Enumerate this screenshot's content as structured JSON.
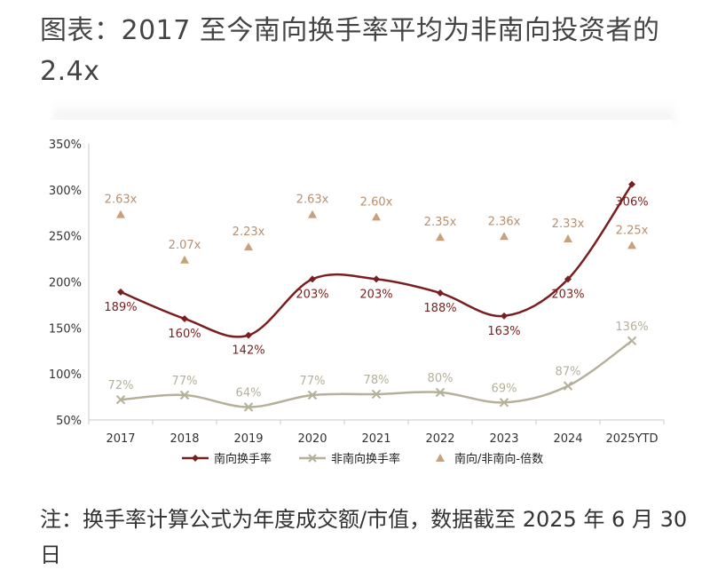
{
  "title": "图表：2017 至今南向换手率平均为非南向投资者的 2.4x",
  "note": "注：换手率计算公式为年度成交额/市值，数据截至 2025 年 6 月 30 日",
  "colors": {
    "southbound": "#7a1f1f",
    "non_southbound": "#b5b09a",
    "multiple": "#c9a07a",
    "multiple_label": "#b89070",
    "axis_text": "#333333"
  },
  "chart_data": {
    "type": "line",
    "categories": [
      "2017",
      "2018",
      "2019",
      "2020",
      "2021",
      "2022",
      "2023",
      "2024",
      "2025YTD"
    ],
    "ylim": [
      50,
      350
    ],
    "yticks": [
      50,
      100,
      150,
      200,
      250,
      300,
      350
    ],
    "ytick_labels": [
      "50%",
      "100%",
      "150%",
      "200%",
      "250%",
      "300%",
      "350%"
    ],
    "series": [
      {
        "name": "南向换手率",
        "values": [
          189,
          160,
          142,
          203,
          203,
          188,
          163,
          203,
          306
        ],
        "labels": [
          "189%",
          "160%",
          "142%",
          "203%",
          "203%",
          "188%",
          "163%",
          "203%",
          "306%"
        ],
        "marker": "diamond"
      },
      {
        "name": "非南向换手率",
        "values": [
          72,
          77,
          64,
          77,
          78,
          80,
          69,
          87,
          136
        ],
        "labels": [
          "72%",
          "77%",
          "64%",
          "77%",
          "78%",
          "80%",
          "69%",
          "87%",
          "136%"
        ],
        "marker": "x"
      },
      {
        "name": "南向/非南向-倍数",
        "values": [
          2.63,
          2.07,
          2.23,
          2.63,
          2.6,
          2.35,
          2.36,
          2.33,
          2.25
        ],
        "labels": [
          "2.63x",
          "2.07x",
          "2.23x",
          "2.63x",
          "2.60x",
          "2.35x",
          "2.36x",
          "2.33x",
          "2.25x"
        ],
        "marker": "triangle"
      }
    ],
    "legend_position": "bottom",
    "grid": false
  }
}
